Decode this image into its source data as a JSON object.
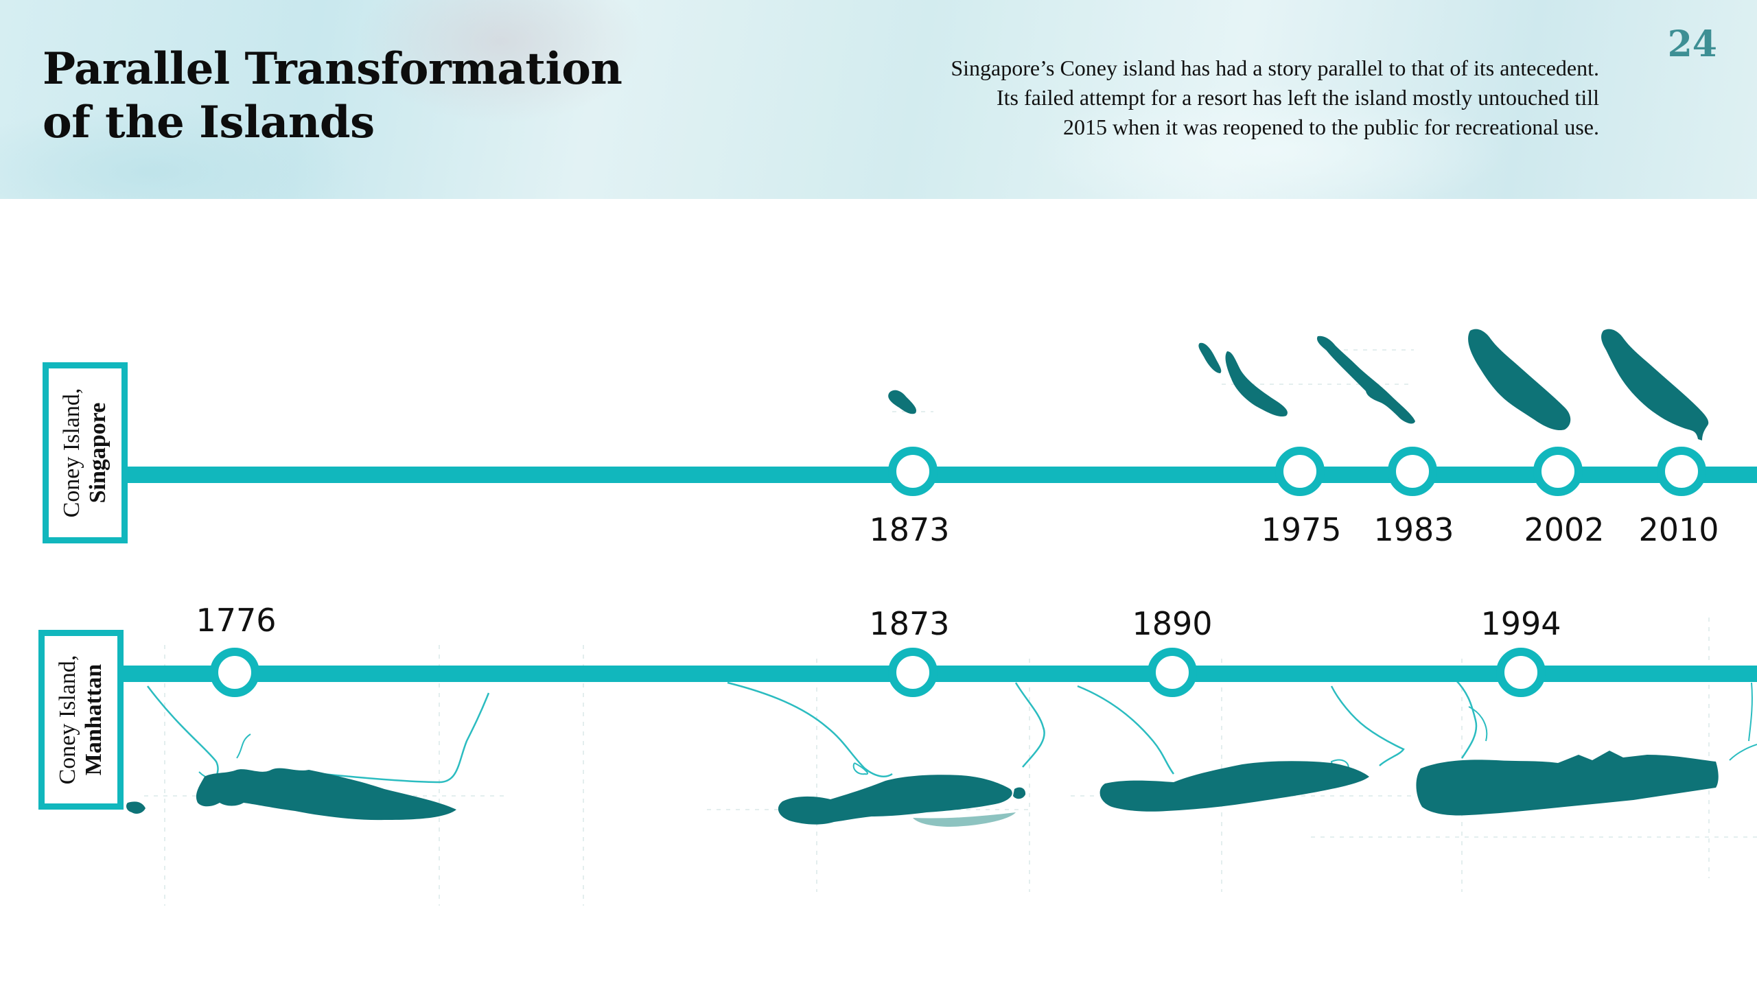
{
  "header": {
    "title": "Parallel Transformation of the Islands",
    "description_lines": [
      "Singapore’s Coney island has had a story parallel to that of its antecedent.",
      "Its failed attempt for a resort has left the island mostly untouched till",
      "2015 when it was reopened to the public for recreational use."
    ],
    "page_number": "24"
  },
  "colors": {
    "timeline": "#11b7bd",
    "island_fill": "#0e7377",
    "coast_outline": "#2bbcc0",
    "shoal": "#8dc3c0"
  },
  "timelines": {
    "singapore": {
      "label_line1": "Coney Island,",
      "label_line2": "Singapore",
      "years": [
        "1873",
        "1975",
        "1983",
        "2002",
        "2010"
      ]
    },
    "manhattan": {
      "label_line1": "Coney Island,",
      "label_line2": "Manhattan",
      "years": [
        "1776",
        "1873",
        "1890",
        "1994"
      ]
    }
  }
}
